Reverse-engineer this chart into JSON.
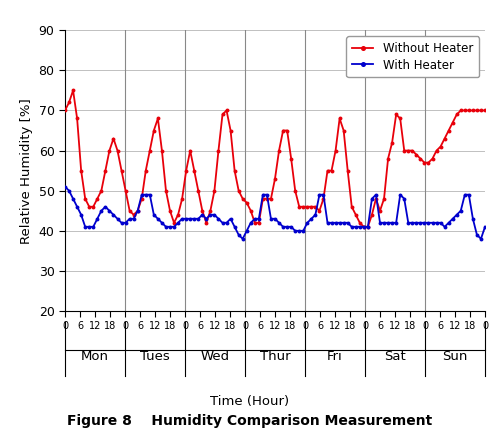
{
  "title": "Figure 8    Humidity Comparison Measurement",
  "ylabel": "Relative Humidity [%]",
  "xlabel": "Time (Hour)",
  "ylim": [
    20,
    90
  ],
  "yticks": [
    20,
    30,
    40,
    50,
    60,
    70,
    80,
    90
  ],
  "days": [
    "Mon",
    "Tues",
    "Wed",
    "Thur",
    "Fri",
    "Sat",
    "Sun"
  ],
  "color_without": "#E8000A",
  "color_with": "#0000CD",
  "without_heater": [
    70,
    72,
    75,
    68,
    55,
    48,
    46,
    46,
    48,
    50,
    55,
    60,
    63,
    60,
    55,
    50,
    45,
    44,
    45,
    48,
    55,
    60,
    65,
    68,
    60,
    50,
    45,
    42,
    44,
    48,
    55,
    60,
    55,
    50,
    45,
    42,
    45,
    50,
    60,
    69,
    70,
    65,
    55,
    50,
    48,
    47,
    45,
    42,
    42,
    48,
    48,
    48,
    53,
    60,
    65,
    65,
    58,
    50,
    46,
    46,
    46,
    46,
    46,
    45,
    48,
    55,
    55,
    60,
    68,
    65,
    55,
    46,
    44,
    42,
    41,
    41,
    44,
    48,
    45,
    48,
    58,
    62,
    69,
    68,
    60,
    60,
    60,
    59,
    58,
    57,
    57,
    58,
    60,
    61,
    63,
    65,
    67,
    69,
    70,
    70,
    70,
    70,
    70,
    70,
    70
  ],
  "with_heater": [
    51,
    50,
    48,
    46,
    44,
    41,
    41,
    41,
    43,
    45,
    46,
    45,
    44,
    43,
    42,
    42,
    43,
    43,
    45,
    49,
    49,
    49,
    44,
    43,
    42,
    41,
    41,
    41,
    42,
    43,
    43,
    43,
    43,
    43,
    44,
    43,
    44,
    44,
    43,
    42,
    42,
    43,
    41,
    39,
    38,
    40,
    42,
    43,
    43,
    49,
    49,
    43,
    43,
    42,
    41,
    41,
    41,
    40,
    40,
    40,
    42,
    43,
    44,
    49,
    49,
    42,
    42,
    42,
    42,
    42,
    42,
    41,
    41,
    41,
    41,
    41,
    48,
    49,
    42,
    42,
    42,
    42,
    42,
    49,
    48,
    42,
    42,
    42,
    42,
    42,
    42,
    42,
    42,
    42,
    41,
    42,
    43,
    44,
    45,
    49,
    49,
    43,
    39,
    38,
    41
  ]
}
